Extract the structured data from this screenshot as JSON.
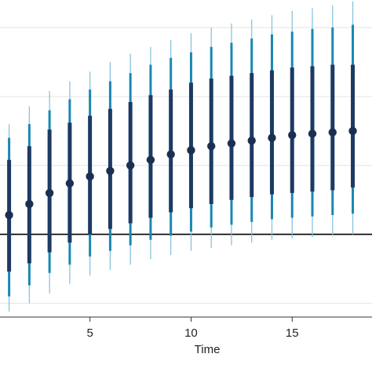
{
  "chart_data": {
    "type": "scatter",
    "title": "",
    "xlabel": "Time",
    "ylabel": "",
    "x": [
      1,
      2,
      3,
      4,
      5,
      6,
      7,
      8,
      9,
      10,
      11,
      12,
      13,
      14,
      15,
      16,
      17,
      18
    ],
    "estimate": [
      0.14,
      0.22,
      0.3,
      0.37,
      0.42,
      0.46,
      0.5,
      0.54,
      0.58,
      0.61,
      0.64,
      0.66,
      0.68,
      0.7,
      0.72,
      0.73,
      0.74,
      0.75
    ],
    "ci_inner": [
      [
        -0.27,
        0.54
      ],
      [
        -0.21,
        0.64
      ],
      [
        -0.13,
        0.76
      ],
      [
        -0.06,
        0.81
      ],
      [
        0.0,
        0.86
      ],
      [
        0.04,
        0.91
      ],
      [
        0.08,
        0.96
      ],
      [
        0.12,
        1.01
      ],
      [
        0.16,
        1.05
      ],
      [
        0.19,
        1.1
      ],
      [
        0.22,
        1.13
      ],
      [
        0.25,
        1.15
      ],
      [
        0.27,
        1.17
      ],
      [
        0.29,
        1.19
      ],
      [
        0.3,
        1.21
      ],
      [
        0.31,
        1.22
      ],
      [
        0.32,
        1.23
      ],
      [
        0.34,
        1.23
      ]
    ],
    "ci_outer": [
      [
        -0.45,
        0.7
      ],
      [
        -0.37,
        0.8
      ],
      [
        -0.28,
        0.9
      ],
      [
        -0.22,
        0.98
      ],
      [
        -0.16,
        1.05
      ],
      [
        -0.12,
        1.11
      ],
      [
        -0.08,
        1.17
      ],
      [
        -0.04,
        1.23
      ],
      [
        -0.01,
        1.28
      ],
      [
        0.02,
        1.32
      ],
      [
        0.05,
        1.36
      ],
      [
        0.07,
        1.39
      ],
      [
        0.09,
        1.42
      ],
      [
        0.11,
        1.45
      ],
      [
        0.12,
        1.47
      ],
      [
        0.13,
        1.49
      ],
      [
        0.14,
        1.5
      ],
      [
        0.15,
        1.52
      ]
    ],
    "ci_outermost": [
      [
        -0.56,
        0.8
      ],
      [
        -0.5,
        0.93
      ],
      [
        -0.43,
        1.04
      ],
      [
        -0.36,
        1.11
      ],
      [
        -0.3,
        1.18
      ],
      [
        -0.26,
        1.25
      ],
      [
        -0.22,
        1.31
      ],
      [
        -0.18,
        1.36
      ],
      [
        -0.15,
        1.41
      ],
      [
        -0.12,
        1.46
      ],
      [
        -0.1,
        1.5
      ],
      [
        -0.08,
        1.53
      ],
      [
        -0.06,
        1.56
      ],
      [
        -0.04,
        1.59
      ],
      [
        -0.03,
        1.62
      ],
      [
        -0.02,
        1.64
      ],
      [
        -0.01,
        1.66
      ],
      [
        0.0,
        1.69
      ]
    ],
    "reference_line_y": 0,
    "xlim": [
      0.55,
      18.95
    ],
    "ylim": [
      -0.6,
      1.7
    ],
    "xticks": [
      5,
      10,
      15
    ],
    "ygrid": [
      -0.5,
      0.5,
      1.0,
      1.5
    ],
    "grid": true,
    "colors": {
      "point": "#1c2f52",
      "inner_ci": "#1d3a63",
      "outer_ci": "#1a87b3",
      "outermost_ci": "#82bfd8",
      "grid": "#e3e3e3",
      "reference": "#000000",
      "axis": "#333333"
    }
  }
}
